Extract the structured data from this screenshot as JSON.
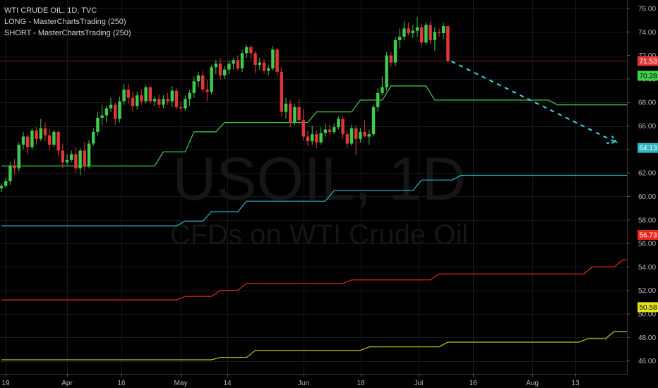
{
  "window": {
    "title": "WTI CRUDE OIL, 1D, TVC"
  },
  "legend": {
    "line1": "WTI CRUDE OIL, 1D, TVC",
    "line2": "LONG - MasterChartsTrading (250)",
    "line3": "SHORT - MasterChartsTrading (250)"
  },
  "watermark": {
    "symbol": "USOIL, 1D",
    "description": "CFDs on WTI Crude Oil"
  },
  "colors": {
    "background": "#000000",
    "grid": "#161a22",
    "up_candle": "#3fcc4a",
    "down_candle": "#e2363a",
    "long_line": "#3fd34a",
    "support_line": "#2bb7c4",
    "short_line": "#e8271f",
    "yellow_line": "#c4c41e",
    "forecast_arrow": "#3ad6e6",
    "price_line": "#8b1a1a"
  },
  "chart_data": {
    "type": "candlestick",
    "title": "WTI CRUDE OIL, 1D, TVC",
    "x_ticks": [
      "19",
      "Apr",
      "16",
      "May",
      "14",
      "Jun",
      "18",
      "Jul",
      "16",
      "Aug",
      "13"
    ],
    "y_ticks": [
      "76.00",
      "74.00",
      "72.00",
      "70.00",
      "68.00",
      "66.00",
      "64.00",
      "62.00",
      "60.00",
      "58.00",
      "56.00",
      "54.00",
      "52.00",
      "50.00",
      "48.00",
      "46.00"
    ],
    "ylim": [
      44.9,
      76.3
    ],
    "grid": true,
    "current_price": "71.53",
    "candles": [
      [
        60.7,
        61.1,
        60.4,
        60.9
      ],
      [
        60.9,
        61.6,
        60.7,
        61.3
      ],
      [
        61.3,
        62.9,
        61.0,
        62.6
      ],
      [
        62.6,
        63.2,
        61.9,
        62.4
      ],
      [
        62.4,
        64.6,
        62.1,
        64.4
      ],
      [
        64.4,
        65.5,
        64.0,
        65.1
      ],
      [
        65.1,
        65.3,
        63.6,
        64.2
      ],
      [
        64.2,
        65.8,
        64.0,
        65.6
      ],
      [
        65.6,
        65.9,
        64.4,
        64.9
      ],
      [
        64.9,
        66.6,
        64.7,
        65.8
      ],
      [
        65.8,
        66.3,
        64.7,
        65.2
      ],
      [
        65.2,
        65.7,
        63.9,
        64.4
      ],
      [
        64.4,
        65.7,
        64.2,
        65.5
      ],
      [
        65.5,
        65.6,
        63.4,
        63.9
      ],
      [
        63.9,
        64.5,
        62.4,
        62.9
      ],
      [
        62.9,
        63.6,
        62.7,
        63.1
      ],
      [
        63.1,
        63.9,
        62.9,
        63.6
      ],
      [
        63.6,
        64.2,
        62.0,
        62.4
      ],
      [
        62.4,
        64.1,
        61.8,
        63.9
      ],
      [
        63.9,
        64.6,
        62.2,
        62.6
      ],
      [
        62.6,
        64.8,
        62.4,
        64.5
      ],
      [
        64.5,
        65.8,
        64.3,
        65.5
      ],
      [
        65.5,
        67.2,
        65.2,
        66.7
      ],
      [
        66.7,
        67.8,
        66.1,
        66.9
      ],
      [
        66.9,
        67.7,
        66.3,
        67.5
      ],
      [
        67.5,
        68.4,
        67.2,
        67.8
      ],
      [
        67.8,
        68.0,
        66.1,
        66.6
      ],
      [
        66.6,
        68.5,
        66.3,
        68.1
      ],
      [
        68.1,
        69.6,
        67.8,
        69.1
      ],
      [
        69.1,
        69.6,
        67.9,
        68.4
      ],
      [
        68.4,
        68.9,
        67.2,
        67.7
      ],
      [
        67.7,
        68.9,
        67.4,
        68.6
      ],
      [
        68.6,
        69.1,
        67.8,
        68.1
      ],
      [
        68.1,
        69.5,
        67.9,
        69.3
      ],
      [
        69.3,
        69.4,
        67.9,
        68.1
      ],
      [
        68.1,
        68.5,
        67.7,
        68.3
      ],
      [
        68.3,
        68.7,
        67.5,
        67.8
      ],
      [
        67.8,
        68.6,
        67.5,
        68.3
      ],
      [
        68.3,
        68.8,
        67.8,
        68.1
      ],
      [
        68.1,
        69.4,
        67.6,
        69.0
      ],
      [
        69.0,
        69.2,
        67.4,
        67.6
      ],
      [
        67.6,
        68.1,
        67.2,
        67.5
      ],
      [
        67.5,
        68.6,
        67.3,
        68.3
      ],
      [
        68.3,
        69.1,
        67.7,
        68.8
      ],
      [
        68.8,
        70.2,
        68.4,
        69.8
      ],
      [
        69.8,
        70.6,
        69.3,
        70.3
      ],
      [
        70.3,
        70.7,
        68.8,
        69.1
      ],
      [
        69.1,
        69.9,
        68.1,
        68.9
      ],
      [
        68.9,
        71.2,
        68.7,
        71.0
      ],
      [
        71.0,
        71.6,
        70.4,
        71.3
      ],
      [
        71.3,
        71.8,
        69.9,
        70.3
      ],
      [
        70.3,
        71.1,
        70.0,
        70.8
      ],
      [
        70.8,
        71.6,
        70.4,
        71.3
      ],
      [
        71.3,
        71.8,
        70.8,
        71.6
      ],
      [
        71.6,
        72.0,
        70.7,
        70.9
      ],
      [
        70.9,
        72.5,
        70.6,
        72.2
      ],
      [
        72.2,
        72.9,
        71.8,
        72.7
      ],
      [
        72.7,
        72.9,
        71.7,
        72.2
      ],
      [
        72.2,
        72.4,
        70.5,
        71.2
      ],
      [
        71.2,
        71.8,
        70.8,
        71.4
      ],
      [
        71.4,
        71.7,
        70.5,
        70.7
      ],
      [
        70.7,
        71.2,
        70.3,
        70.9
      ],
      [
        70.9,
        72.8,
        70.7,
        72.5
      ],
      [
        72.5,
        72.6,
        70.3,
        70.6
      ],
      [
        70.6,
        71.0,
        66.8,
        67.2
      ],
      [
        67.2,
        68.4,
        66.6,
        67.9
      ],
      [
        67.9,
        68.2,
        65.9,
        66.3
      ],
      [
        66.3,
        67.9,
        66.1,
        67.6
      ],
      [
        67.6,
        68.3,
        66.1,
        66.5
      ],
      [
        66.5,
        67.4,
        64.8,
        65.1
      ],
      [
        65.1,
        65.6,
        64.3,
        64.7
      ],
      [
        64.7,
        66.0,
        64.4,
        65.3
      ],
      [
        65.3,
        65.6,
        64.1,
        64.6
      ],
      [
        64.6,
        65.9,
        64.4,
        65.4
      ],
      [
        65.4,
        66.2,
        65.1,
        65.7
      ],
      [
        65.7,
        66.1,
        65.2,
        65.5
      ],
      [
        65.5,
        66.2,
        65.3,
        65.9
      ],
      [
        65.9,
        66.8,
        65.7,
        66.6
      ],
      [
        66.6,
        66.8,
        64.9,
        65.3
      ],
      [
        65.3,
        65.6,
        64.1,
        64.5
      ],
      [
        64.5,
        66.1,
        64.3,
        65.8
      ],
      [
        65.8,
        66.0,
        63.5,
        64.9
      ],
      [
        64.9,
        65.8,
        64.6,
        65.5
      ],
      [
        65.5,
        66.5,
        65.1,
        65.1
      ],
      [
        65.1,
        65.7,
        64.4,
        65.3
      ],
      [
        65.3,
        67.8,
        65.1,
        67.6
      ],
      [
        67.6,
        69.2,
        67.2,
        68.8
      ],
      [
        68.8,
        70.2,
        68.6,
        69.3
      ],
      [
        69.3,
        72.3,
        69.0,
        72.0
      ],
      [
        72.0,
        72.3,
        71.0,
        71.4
      ],
      [
        71.4,
        73.6,
        71.1,
        73.3
      ],
      [
        73.3,
        74.3,
        72.6,
        73.6
      ],
      [
        73.6,
        74.9,
        73.3,
        74.3
      ],
      [
        74.3,
        74.8,
        73.7,
        73.9
      ],
      [
        73.9,
        74.6,
        73.5,
        74.1
      ],
      [
        74.1,
        75.3,
        73.6,
        74.4
      ],
      [
        74.4,
        74.7,
        72.7,
        73.1
      ],
      [
        73.1,
        74.8,
        72.9,
        74.6
      ],
      [
        74.6,
        74.9,
        73.0,
        73.3
      ],
      [
        73.3,
        74.4,
        72.4,
        74.0
      ],
      [
        74.0,
        74.3,
        73.6,
        73.9
      ],
      [
        73.9,
        74.8,
        73.4,
        74.5
      ],
      [
        74.5,
        74.4,
        71.4,
        71.53
      ]
    ],
    "series": [
      {
        "name": "LONG - MasterChartsTrading (250)",
        "points": [
          [
            0,
            62.6
          ],
          [
            35,
            62.6
          ],
          [
            37,
            63.8
          ],
          [
            42,
            63.8
          ],
          [
            44,
            65.5
          ],
          [
            49,
            65.5
          ],
          [
            51,
            66.3
          ],
          [
            70,
            66.3
          ],
          [
            72,
            67.2
          ],
          [
            80,
            67.2
          ],
          [
            82,
            68.2
          ],
          [
            87,
            68.2
          ],
          [
            89,
            69.4
          ],
          [
            97,
            69.4
          ],
          [
            99,
            68.2
          ],
          [
            125,
            68.2
          ],
          [
            127,
            67.8
          ],
          [
            154,
            67.8
          ],
          [
            156,
            68.1
          ],
          [
            168,
            68.1
          ],
          [
            170,
            69.8
          ],
          [
            176,
            69.8
          ],
          [
            178,
            70.28
          ],
          [
            188,
            70.28
          ]
        ]
      },
      {
        "name": "",
        "points": [
          [
            0,
            57.5
          ],
          [
            40,
            57.5
          ],
          [
            42,
            57.9
          ],
          [
            46,
            57.9
          ],
          [
            48,
            58.7
          ],
          [
            54,
            58.7
          ],
          [
            56,
            59.6
          ],
          [
            74,
            59.6
          ],
          [
            76,
            60.5
          ],
          [
            94,
            60.5
          ],
          [
            96,
            61.4
          ],
          [
            103,
            61.4
          ],
          [
            105,
            61.8
          ],
          [
            150,
            61.8
          ],
          [
            152,
            62.2
          ],
          [
            160,
            62.2
          ],
          [
            162,
            63.0
          ],
          [
            168,
            63.0
          ],
          [
            170,
            64.1
          ],
          [
            188,
            64.13
          ]
        ]
      },
      {
        "name": "SHORT - MasterChartsTrading (250)",
        "points": [
          [
            0,
            51.2
          ],
          [
            40,
            51.2
          ],
          [
            42,
            51.5
          ],
          [
            48,
            51.5
          ],
          [
            50,
            52.0
          ],
          [
            54,
            52.0
          ],
          [
            56,
            52.6
          ],
          [
            78,
            52.6
          ],
          [
            80,
            52.9
          ],
          [
            98,
            52.9
          ],
          [
            100,
            53.4
          ],
          [
            133,
            53.4
          ],
          [
            135,
            54.0
          ],
          [
            140,
            54.0
          ],
          [
            142,
            54.6
          ],
          [
            158,
            54.6
          ],
          [
            160,
            55.2
          ],
          [
            164,
            55.2
          ],
          [
            166,
            56.1
          ],
          [
            170,
            56.1
          ],
          [
            172,
            56.6
          ],
          [
            188,
            56.73
          ]
        ]
      },
      {
        "name": "",
        "points": [
          [
            0,
            46.1
          ],
          [
            48,
            46.1
          ],
          [
            50,
            46.3
          ],
          [
            56,
            46.3
          ],
          [
            58,
            46.9
          ],
          [
            82,
            46.9
          ],
          [
            84,
            47.2
          ],
          [
            100,
            47.2
          ],
          [
            102,
            47.6
          ],
          [
            132,
            47.6
          ],
          [
            134,
            47.9
          ],
          [
            138,
            47.9
          ],
          [
            140,
            48.5
          ],
          [
            144,
            48.5
          ],
          [
            146,
            49.3
          ],
          [
            158,
            49.3
          ],
          [
            160,
            50.2
          ],
          [
            164,
            50.2
          ],
          [
            166,
            50.5
          ],
          [
            184,
            50.5
          ],
          [
            186,
            50.58
          ],
          [
            188,
            50.58
          ]
        ]
      }
    ],
    "price_labels": [
      {
        "value": "71.53",
        "y": 71.53,
        "bg": "#e2363a",
        "fg": "#ffffff"
      },
      {
        "value": "70.28",
        "y": 70.28,
        "bg": "#3fd34a",
        "fg": "#000000"
      },
      {
        "value": "64.13",
        "y": 64.13,
        "bg": "#2bb7c4",
        "fg": "#ffffff"
      },
      {
        "value": "56.73",
        "y": 56.73,
        "bg": "#e8271f",
        "fg": "#ffffff"
      },
      {
        "value": "50.58",
        "y": 50.58,
        "bg": "#e6e61e",
        "fg": "#000000"
      }
    ]
  }
}
